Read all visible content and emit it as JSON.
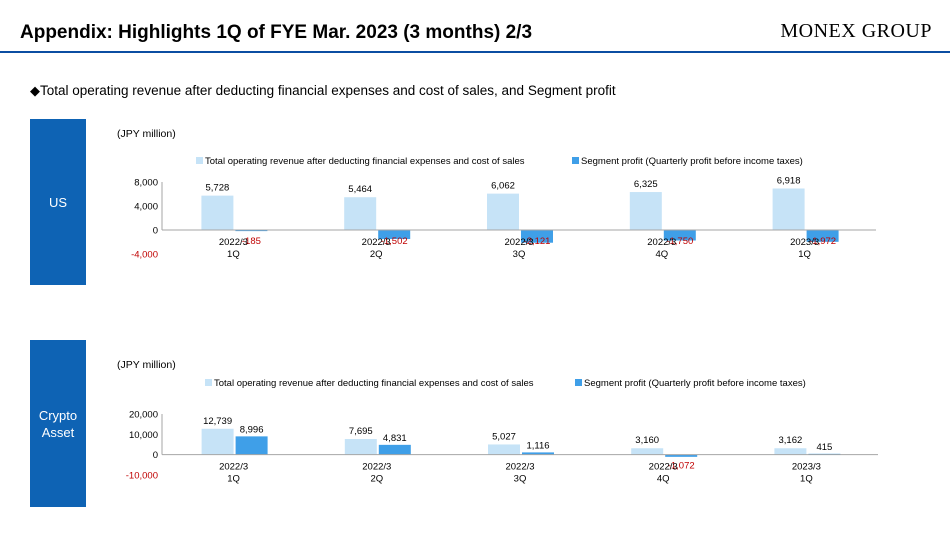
{
  "header": {
    "title": "Appendix: Highlights 1Q of FYE Mar. 2023 (3 months) 2/3",
    "logo": "MONEX GROUP"
  },
  "subtitle": {
    "bullet": "◆",
    "text": "Total operating revenue after deducting financial expenses and cost of sales, and Segment profit"
  },
  "colors": {
    "revenue": "#c6e3f7",
    "profit": "#3f9fe8",
    "negative_label": "#c00000",
    "segment_box": "#0e63b4",
    "rule": "#0b4da2"
  },
  "chart_data": [
    {
      "type": "bar",
      "segment": "US",
      "unit": "(JPY million)",
      "categories": [
        {
          "line1": "2022/3",
          "line2": "1Q"
        },
        {
          "line1": "2022/3",
          "line2": "2Q"
        },
        {
          "line1": "2022/3",
          "line2": "3Q"
        },
        {
          "line1": "2022/3",
          "line2": "4Q"
        },
        {
          "line1": "2023/3",
          "line2": "1Q"
        }
      ],
      "series": [
        {
          "name": "Total operating revenue after deducting financial expenses and cost of sales",
          "values": [
            5728,
            5464,
            6062,
            6325,
            6918
          ],
          "labels": [
            "5,728",
            "5,464",
            "6,062",
            "6,325",
            "6,918"
          ]
        },
        {
          "name": "Segment profit (Quarterly profit before income taxes)",
          "values": [
            -185,
            -1502,
            -2121,
            -1750,
            -1972
          ],
          "labels": [
            "-185",
            "-1,502",
            "-2,121",
            "-1,750",
            "-1,972"
          ]
        }
      ],
      "yticks": [
        8000,
        4000,
        0,
        -4000
      ],
      "ytick_labels": [
        "8,000",
        "4,000",
        "0",
        "-4,000"
      ],
      "ylim": [
        -4000,
        8000
      ],
      "legend_position": "top"
    },
    {
      "type": "bar",
      "segment": "Crypto Asset",
      "segment_lines": [
        "Crypto",
        "Asset"
      ],
      "unit": "(JPY million)",
      "categories": [
        {
          "line1": "2022/3",
          "line2": "1Q"
        },
        {
          "line1": "2022/3",
          "line2": "2Q"
        },
        {
          "line1": "2022/3",
          "line2": "3Q"
        },
        {
          "line1": "2022/3",
          "line2": "4Q"
        },
        {
          "line1": "2023/3",
          "line2": "1Q"
        }
      ],
      "series": [
        {
          "name": "Total operating revenue after deducting financial expenses and cost of sales",
          "values": [
            12739,
            7695,
            5027,
            3160,
            3162
          ],
          "labels": [
            "12,739",
            "7,695",
            "5,027",
            "3,160",
            "3,162"
          ]
        },
        {
          "name": "Segment profit (Quarterly profit before income taxes)",
          "values": [
            8996,
            4831,
            1116,
            -1072,
            415
          ],
          "labels": [
            "8,996",
            "4,831",
            "1,116",
            "-1,072",
            "415"
          ]
        }
      ],
      "yticks": [
        20000,
        10000,
        0,
        -10000
      ],
      "ytick_labels": [
        "20,000",
        "10,000",
        "0",
        "-10,000"
      ],
      "ylim": [
        -10000,
        20000
      ],
      "legend_position": "top"
    }
  ]
}
